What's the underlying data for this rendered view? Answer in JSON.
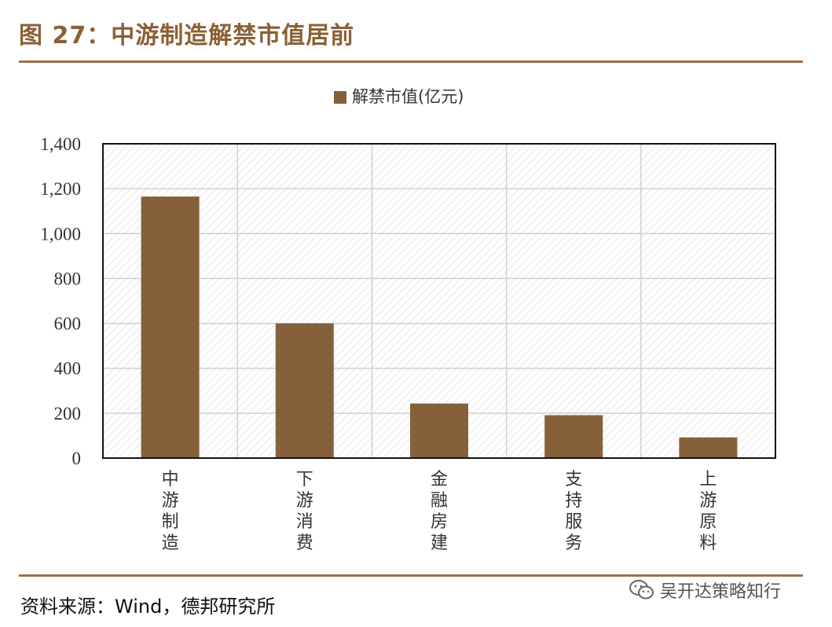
{
  "figure": {
    "title": "图 27：中游制造解禁市值居前",
    "source": "资料来源：Wind，德邦研究所",
    "watermark": "吴开达策略知行"
  },
  "colors": {
    "bar": "#85603a",
    "rule": "#a0714a",
    "title": "#8a6035"
  },
  "icons": {
    "watermark": "wechat-icon"
  },
  "chart_data": {
    "type": "bar",
    "title": "",
    "xlabel": "",
    "ylabel": "",
    "categories": [
      "中游制造",
      "下游消费",
      "金融房建",
      "支持服务",
      "上游原料"
    ],
    "series": [
      {
        "name": "解禁市值(亿元)",
        "values": [
          1165,
          600,
          243,
          191,
          92
        ]
      }
    ],
    "ylim": [
      0,
      1400
    ],
    "yticks": [
      0,
      200,
      400,
      600,
      800,
      1000,
      1200,
      1400
    ],
    "ytick_labels": [
      "0",
      "200",
      "400",
      "600",
      "800",
      "1,000",
      "1,200",
      "1,400"
    ],
    "grid": true,
    "legend": "top-center"
  }
}
